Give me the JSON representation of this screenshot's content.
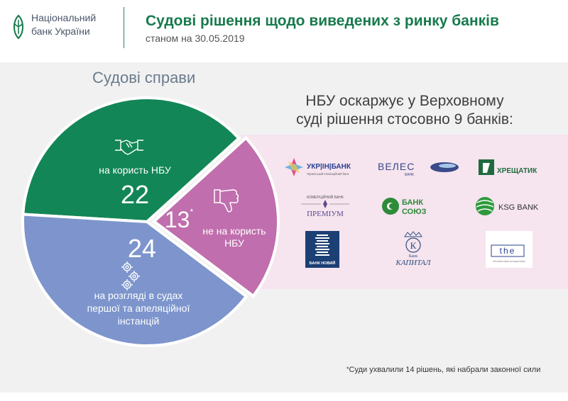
{
  "header": {
    "logo_line1": "Національний",
    "logo_line2": "банк України",
    "title": "Судові рішення щодо виведених з ринку банків",
    "subtitle": "станом на 30.05.2019"
  },
  "chart_data": {
    "type": "pie",
    "title": "Судові справи",
    "slices": [
      {
        "label": "на користь НБУ",
        "value": 22,
        "color": "#128656"
      },
      {
        "label": "не на користь НБУ",
        "value": 13,
        "color": "#c06ead"
      },
      {
        "label": "на розгляді в судах першої та апеляційної інстанцій",
        "value": 24,
        "color": "#7d95cc"
      }
    ],
    "labels": {
      "nbu_label": "на користь НБУ",
      "nbu_value": "22",
      "notnbu_value": "13",
      "notnbu_asterisk": "*",
      "notnbu_label_1": "не на користь",
      "notnbu_label_2": "НБУ",
      "review_value": "24",
      "review_label_1": "на розгляді в судах",
      "review_label_2": "першої та апеляційної",
      "review_label_3": "інстанцій"
    },
    "icons": [
      "handshake-icon",
      "thumbs-down-icon",
      "gears-icon"
    ]
  },
  "appeal": {
    "line1": "НБУ  оскаржує у Верховному",
    "line2": "суді рішення стосовно 9 банків:"
  },
  "banks": [
    {
      "name": "УКР|ІН|БАНК",
      "sub": "Український інноваційний банк"
    },
    {
      "name": "ВЕЛЕС",
      "sub": "БАНК"
    },
    {
      "name": "ХРЕЩАТИК"
    },
    {
      "name": "ПРЕМІУМ",
      "sub": "КОМЕРЦІЙНИЙ БАНК"
    },
    {
      "name_1": "БАНК",
      "name_2": "СОЮЗ"
    },
    {
      "name": "KSG BANK"
    },
    {
      "name": "БАНК НОВИЙ"
    },
    {
      "name": "КАПИТАЛ",
      "sub": "Банк",
      "initial": "К"
    },
    {
      "name": "the",
      "sub": "Финансовая инициатива"
    }
  ],
  "footnote": {
    "asterisk": "*",
    "text": "Суди ухвалили 14 рішень, які набрали законної сили"
  },
  "colors": {
    "brand_green": "#177a4d",
    "pie_green": "#128656",
    "pie_pink": "#c06ead",
    "pie_blue": "#7d95cc",
    "band_pink": "#f6e4ef",
    "band_grey": "#f1f1f2"
  }
}
